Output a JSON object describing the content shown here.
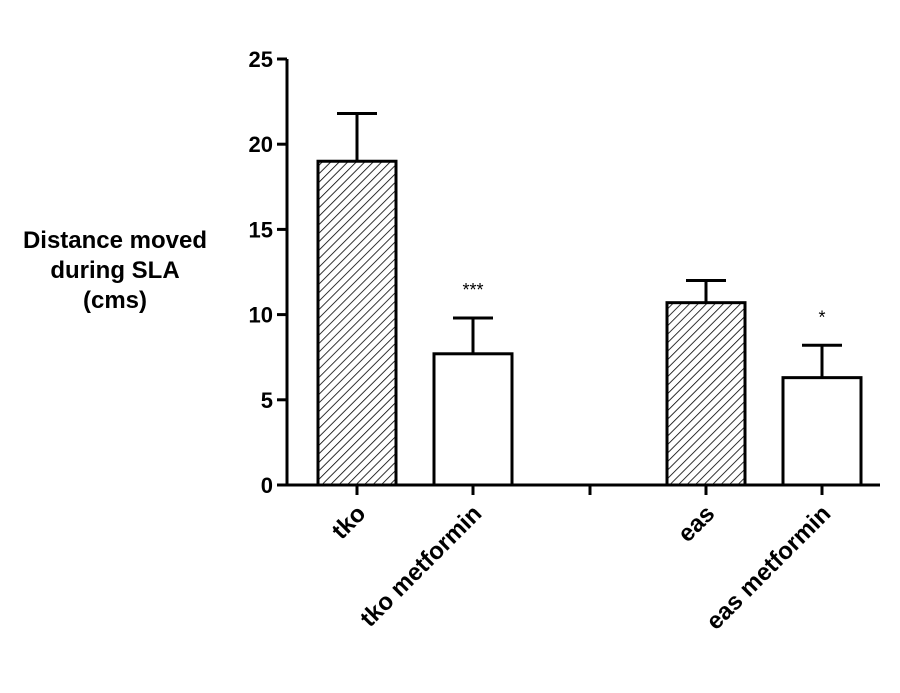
{
  "chart_data": {
    "type": "bar",
    "ylabel_lines": [
      "Distance moved",
      "during SLA",
      "(cms)"
    ],
    "ylim": [
      0,
      25
    ],
    "yticks": [
      "0",
      "5",
      "10",
      "15",
      "20",
      "25"
    ],
    "categories": [
      "tko",
      "tko metformin",
      "eas",
      "eas metformin"
    ],
    "values": [
      19.0,
      7.7,
      10.7,
      6.3
    ],
    "errors": [
      2.8,
      2.1,
      1.3,
      1.9
    ],
    "patterns": [
      "hatched",
      "plain",
      "hatched",
      "plain"
    ],
    "significance": [
      "",
      "***",
      "",
      "*"
    ],
    "grid": false,
    "legend": "none"
  }
}
